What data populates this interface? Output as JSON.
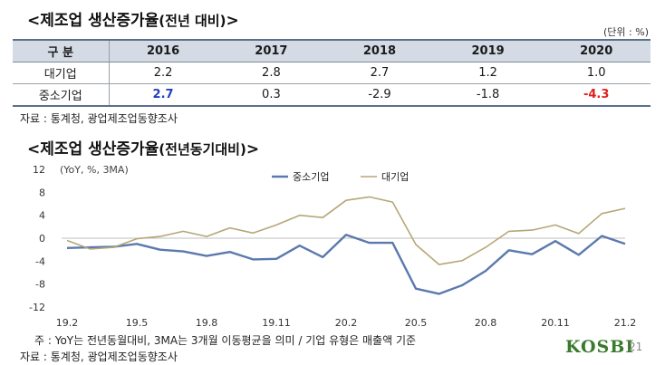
{
  "section1": {
    "title_main": "<제조업 생산증가율",
    "title_sub": "(전년 대비)",
    "title_close": ">",
    "unit": "(단위 : %)",
    "header_label": "구 분",
    "years": [
      "2016",
      "2017",
      "2018",
      "2019",
      "2020"
    ],
    "rows": [
      {
        "label": "대기업",
        "values": [
          "2.2",
          "2.8",
          "2.7",
          "1.2",
          "1.0"
        ]
      },
      {
        "label": "중소기업",
        "values": [
          "2.7",
          "0.3",
          "-2.9",
          "-1.8",
          "-4.3"
        ]
      }
    ],
    "source": "자료 : 통계청, 광업제조업동향조사"
  },
  "section2": {
    "title_main": "<제조업 생산증가율",
    "title_sub": "(전년동기대비)",
    "title_close": ">",
    "note": "주 : YoY는 전년동월대비, 3MA는 3개월 이동평균을 의미 / 기업 유형은 매출액 기준",
    "source": "자료 : 통계청, 광업제조업동향조사"
  },
  "chart_data": {
    "type": "line",
    "ylabel": "(YoY, %, 3MA)",
    "ylim": [
      -12,
      12
    ],
    "yticks": [
      12,
      8,
      4,
      0,
      -4,
      -8,
      -12
    ],
    "x": [
      "19.2",
      "19.3",
      "19.4",
      "19.5",
      "19.6",
      "19.7",
      "19.8",
      "19.9",
      "19.10",
      "19.11",
      "19.12",
      "20.1",
      "20.2",
      "20.3",
      "20.4",
      "20.5",
      "20.6",
      "20.7",
      "20.8",
      "20.9",
      "20.10",
      "20.11",
      "20.12",
      "21.1",
      "21.2"
    ],
    "xtick_labels": [
      "19.2",
      "19.5",
      "19.8",
      "19.11",
      "20.2",
      "20.5",
      "20.8",
      "20.11",
      "21.2"
    ],
    "series": [
      {
        "name": "중소기업",
        "color": "#5b79ad",
        "values": [
          -1.7,
          -1.6,
          -1.5,
          -1.0,
          -2.0,
          -2.3,
          -3.1,
          -2.4,
          -3.7,
          -3.6,
          -1.3,
          -3.3,
          0.6,
          -0.8,
          -0.8,
          -8.8,
          -9.7,
          -8.2,
          -5.7,
          -2.1,
          -2.8,
          -0.5,
          -2.9,
          0.4,
          -1.0
        ]
      },
      {
        "name": "대기업",
        "color": "#b5a777",
        "values": [
          -0.4,
          -1.9,
          -1.6,
          -0.1,
          0.3,
          1.2,
          0.3,
          1.8,
          0.9,
          2.3,
          4.0,
          3.6,
          6.6,
          7.2,
          6.3,
          -1.1,
          -4.6,
          -3.9,
          -1.6,
          1.2,
          1.4,
          2.3,
          0.8,
          4.3,
          5.2
        ]
      }
    ],
    "grid": false,
    "legend": "top-center"
  },
  "footer": {
    "logo": "KOSBI",
    "page_number": "21"
  }
}
